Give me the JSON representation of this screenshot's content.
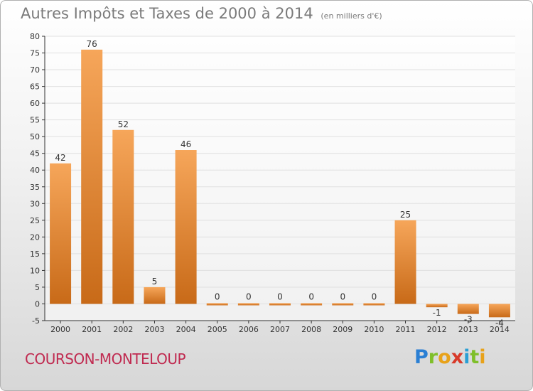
{
  "title": "Autres Impôts et Taxes de 2000 à 2014",
  "title_unit": "(en milliers d'€)",
  "commune": "COURSON-MONTELOUP",
  "logo": {
    "letters": [
      "P",
      "r",
      "o",
      "x",
      "i",
      "t",
      "i"
    ],
    "colors": [
      "#2a7fd4",
      "#7fbf2a",
      "#e8a21a",
      "#d83a2a",
      "#2a9fd4",
      "#7fbf2a",
      "#e8a21a"
    ]
  },
  "colors": {
    "bar_light": "#f6a65a",
    "bar_dark": "#c86a18",
    "axis": "#333333",
    "grid": "#e0e0e0"
  },
  "chart_data": {
    "type": "bar",
    "title": "Autres Impôts et Taxes de 2000 à 2014",
    "subtitle": "(en milliers d'€)",
    "categories": [
      "2000",
      "2001",
      "2002",
      "2003",
      "2004",
      "2005",
      "2006",
      "2007",
      "2008",
      "2009",
      "2010",
      "2011",
      "2012",
      "2013",
      "2014"
    ],
    "values": [
      42,
      76,
      52,
      5,
      46,
      0,
      0,
      0,
      0,
      0,
      0,
      25,
      -1,
      -3,
      -4
    ],
    "value_labels": [
      "42",
      "76",
      "52",
      "5",
      "46",
      "0",
      "0",
      "0",
      "0",
      "0",
      "0",
      "25",
      "-1",
      "-3",
      "-4"
    ],
    "ylim": [
      -5,
      80
    ],
    "yticks": [
      -5,
      0,
      5,
      10,
      15,
      20,
      25,
      30,
      35,
      40,
      45,
      50,
      55,
      60,
      65,
      70,
      75,
      80
    ],
    "grid": true,
    "legend": "none"
  }
}
